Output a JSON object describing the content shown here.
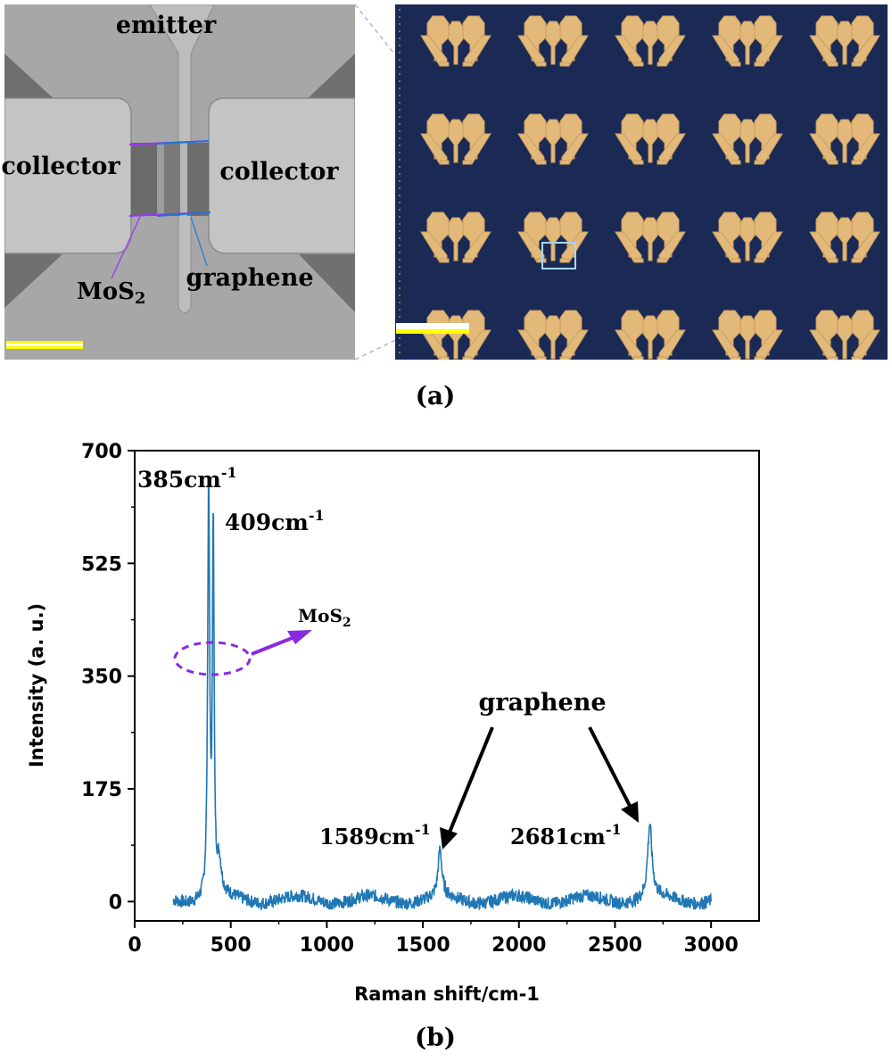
{
  "panel_a": {
    "caption": "(a)",
    "sem_labels": {
      "emitter": "emitter",
      "collector_left": "collector",
      "collector_right": "collector",
      "mos2": "MoS",
      "mos2_sub": "2",
      "graphene": "graphene"
    },
    "colors": {
      "mos2_line": "#9b30ff",
      "graphene_line": "#1f77d4",
      "substrate": "#1a2a55",
      "electrode": "#e3b97a",
      "scalebar": "#ffff00"
    },
    "device_grid": {
      "rows": 4,
      "cols": 5
    }
  },
  "panel_b": {
    "caption": "(b)"
  },
  "chart_data": {
    "type": "line",
    "xlabel": "Raman shift/cm-1",
    "ylabel": "Intensity (a. u.)",
    "xlim": [
      0,
      3250
    ],
    "ylim": [
      -30,
      700
    ],
    "xticks": [
      0,
      500,
      1000,
      1500,
      2000,
      2500,
      3000
    ],
    "yticks": [
      0,
      175,
      350,
      525,
      700
    ],
    "series_color": "#1f77b4",
    "x_range": [
      200,
      3000
    ],
    "peaks": [
      {
        "x": 385,
        "y": 640
      },
      {
        "x": 409,
        "y": 580
      },
      {
        "x": 440,
        "y": 50
      },
      {
        "x": 1589,
        "y": 72
      },
      {
        "x": 2681,
        "y": 112
      }
    ],
    "annotations": [
      {
        "text": "385cm",
        "sup": "-1"
      },
      {
        "text": "409cm",
        "sup": "-1"
      },
      {
        "text": "MoS",
        "sub": "2"
      },
      {
        "text": "graphene"
      },
      {
        "text": "1589cm",
        "sup": "-1"
      },
      {
        "text": "2681cm",
        "sup": "-1"
      }
    ],
    "mos2_marker_color": "#8a2be2"
  }
}
